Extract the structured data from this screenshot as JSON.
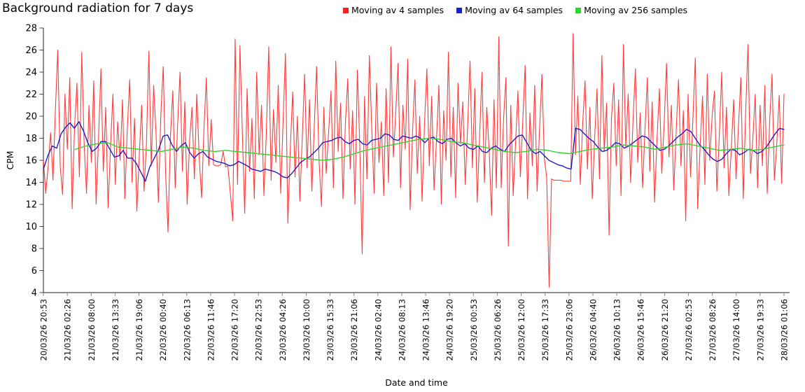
{
  "title": "Background radiation for 7 days",
  "legend": [
    {
      "label": "Moving av 4 samples",
      "color": "#ff1f1f"
    },
    {
      "label": "Moving av 64 samples",
      "color": "#1c1ccf"
    },
    {
      "label": "Moving av 256 samples",
      "color": "#2fd32f"
    }
  ],
  "chart_data": {
    "type": "line",
    "title": "Background radiation for 7 days",
    "xlabel": "Date and time",
    "ylabel": "CPM",
    "ylim": [
      4,
      28
    ],
    "grid": false,
    "legend_position": "top-center",
    "y_ticks": [
      4,
      6,
      8,
      10,
      12,
      14,
      16,
      18,
      20,
      22,
      24,
      26,
      28
    ],
    "x_ticks": [
      "20/03/26 20:53",
      "21/03/26 02:26",
      "21/03/26 08:00",
      "21/03/26 13:33",
      "21/03/26 19:06",
      "22/03/26 00:40",
      "22/03/26 06:13",
      "22/03/26 11:46",
      "22/03/26 17:20",
      "22/03/26 22:53",
      "23/03/26 04:26",
      "23/03/26 10:00",
      "23/03/26 15:33",
      "23/03/26 21:06",
      "24/03/26 02:40",
      "24/03/26 08:13",
      "24/03/26 13:46",
      "24/03/26 19:20",
      "25/03/26 00:53",
      "25/03/26 06:26",
      "25/03/26 12:00",
      "25/03/26 17:33",
      "25/03/26 23:06",
      "26/03/26 04:40",
      "26/03/26 10:13",
      "26/03/26 15:46",
      "26/03/26 21:20",
      "27/03/26 02:53",
      "27/03/26 08:26",
      "27/03/26 14:00",
      "27/03/26 19:33",
      "28/03/26 01:06"
    ],
    "x_unit": "percent of time axis from 20/03/26 20:53 to 28/03/26 01:06",
    "series": [
      {
        "name": "Moving av 4 samples",
        "color": "#ff1f1f",
        "width": 1.1,
        "opacity": 0.88,
        "x_start": 0,
        "x_end": 100,
        "values": [
          16.0,
          13.0,
          15.5,
          18.5,
          14.2,
          20.5,
          26.0,
          15.5,
          12.9,
          22.0,
          17.0,
          23.5,
          11.6,
          19.0,
          23.0,
          14.5,
          25.8,
          17.5,
          13.0,
          21.0,
          15.8,
          23.2,
          12.0,
          18.0,
          24.3,
          15.0,
          20.8,
          11.7,
          17.2,
          22.0,
          13.8,
          19.5,
          16.0,
          21.5,
          12.5,
          18.8,
          23.3,
          14.0,
          19.8,
          11.4,
          16.5,
          21.0,
          13.2,
          17.5,
          25.9,
          15.5,
          22.8,
          18.5,
          12.2,
          20.2,
          24.5,
          14.8,
          9.5,
          18.2,
          22.3,
          13.5,
          19.2,
          24.0,
          15.0,
          21.3,
          12.0,
          17.8,
          20.8,
          14.3,
          22.0,
          16.2,
          12.6,
          18.9,
          23.5,
          15.5,
          19.7,
          15.6,
          15.5,
          15.5,
          15.6,
          16.8,
          15.4,
          15.5,
          13.0,
          10.5,
          27.0,
          13.8,
          26.4,
          18.5,
          11.2,
          22.5,
          15.0,
          19.8,
          12.5,
          24.0,
          16.5,
          21.0,
          12.8,
          18.3,
          26.3,
          14.2,
          20.6,
          15.8,
          22.8,
          13.0,
          19.5,
          25.7,
          10.3,
          17.0,
          22.2,
          14.5,
          20.0,
          12.3,
          18.0,
          23.8,
          15.3,
          21.5,
          13.2,
          19.0,
          24.5,
          16.0,
          11.8,
          20.8,
          14.8,
          18.5,
          22.3,
          13.5,
          25.0,
          16.8,
          21.2,
          12.5,
          19.3,
          23.4,
          15.2,
          20.5,
          12.0,
          24.2,
          17.3,
          7.5,
          21.8,
          14.3,
          25.5,
          18.8,
          13.0,
          23.0,
          15.8,
          19.5,
          12.8,
          22.5,
          14.0,
          26.3,
          16.3,
          20.3,
          24.8,
          13.5,
          21.0,
          17.0,
          25.2,
          11.5,
          18.5,
          23.3,
          14.8,
          20.0,
          12.3,
          19.2,
          24.3,
          15.5,
          21.8,
          13.3,
          17.8,
          22.8,
          12.0,
          20.5,
          16.0,
          25.8,
          14.5,
          20.8,
          12.6,
          23.0,
          17.5,
          21.3,
          13.8,
          19.0,
          25.0,
          15.3,
          22.5,
          12.2,
          18.3,
          24.0,
          14.0,
          20.8,
          16.8,
          11.0,
          21.5,
          13.5,
          27.2,
          13.5,
          19.8,
          23.5,
          8.2,
          21.0,
          12.8,
          17.5,
          22.3,
          14.5,
          19.5,
          24.6,
          12.5,
          20.3,
          15.5,
          22.8,
          13.2,
          18.8,
          23.8,
          16.2,
          14.5,
          4.5,
          14.3,
          14.2,
          14.2,
          14.2,
          14.2,
          14.1,
          14.1,
          14.1,
          14.1,
          27.5,
          16.5,
          21.8,
          13.8,
          19.3,
          23.2,
          15.2,
          20.8,
          12.5,
          18.0,
          22.5,
          14.3,
          25.5,
          16.8,
          21.2,
          9.2,
          19.8,
          23.0,
          15.5,
          21.5,
          12.8,
          26.5,
          17.2,
          22.0,
          14.0,
          19.5,
          24.3,
          15.8,
          20.3,
          13.5,
          18.8,
          23.5,
          15.0,
          21.3,
          12.2,
          17.8,
          22.5,
          14.8,
          19.3,
          24.8,
          16.3,
          21.0,
          13.3,
          18.5,
          23.3,
          15.5,
          20.5,
          10.5,
          22.0,
          14.5,
          19.8,
          25.3,
          11.6,
          17.3,
          21.8,
          13.8,
          23.8,
          16.0,
          20.0,
          22.3,
          13.2,
          18.3,
          24.0,
          15.3,
          20.8,
          12.8,
          17.0,
          21.5,
          14.3,
          19.0,
          23.5,
          12.5,
          20.3,
          26.5,
          14.8,
          18.0,
          22.0,
          13.5,
          21.0,
          15.5,
          22.8,
          13.0,
          19.5,
          23.8,
          14.2,
          17.5,
          21.9,
          13.9,
          22.0
        ]
      },
      {
        "name": "Moving av 64 samples",
        "color": "#1c1ccf",
        "width": 1.4,
        "opacity": 1,
        "x_start": 0,
        "x_end": 100,
        "values": [
          15.2,
          16.4,
          17.3,
          17.1,
          18.4,
          19.0,
          19.4,
          18.9,
          19.5,
          18.7,
          17.6,
          16.8,
          17.1,
          17.7,
          17.7,
          17.0,
          16.3,
          16.4,
          16.9,
          16.2,
          16.2,
          15.7,
          14.9,
          14.1,
          15.4,
          16.2,
          17.0,
          18.2,
          18.3,
          17.4,
          16.8,
          17.3,
          17.6,
          16.7,
          16.2,
          16.6,
          16.8,
          16.3,
          16.1,
          15.9,
          15.8,
          15.7,
          15.5,
          15.6,
          15.9,
          15.7,
          15.5,
          15.2,
          15.1,
          15.0,
          15.2,
          15.1,
          15.0,
          14.8,
          14.5,
          14.4,
          14.8,
          15.3,
          15.8,
          16.1,
          16.3,
          16.7,
          17.1,
          17.6,
          17.7,
          17.8,
          18.0,
          18.1,
          17.7,
          17.5,
          17.8,
          17.9,
          17.5,
          17.4,
          17.8,
          17.9,
          18.0,
          18.4,
          18.3,
          17.9,
          17.8,
          18.2,
          18.1,
          18.0,
          18.2,
          18.0,
          17.6,
          18.0,
          18.1,
          17.7,
          17.5,
          17.9,
          18.0,
          17.6,
          17.3,
          17.5,
          17.1,
          17.0,
          17.3,
          16.8,
          16.7,
          17.1,
          17.3,
          17.0,
          16.8,
          17.4,
          17.8,
          18.2,
          18.3,
          17.6,
          16.9,
          16.6,
          16.8,
          16.4,
          16.0,
          15.8,
          15.6,
          15.5,
          15.3,
          15.2,
          18.9,
          18.8,
          18.4,
          18.0,
          17.7,
          17.2,
          16.8,
          16.9,
          17.2,
          17.6,
          17.5,
          17.1,
          17.3,
          17.6,
          17.9,
          18.2,
          18.1,
          17.7,
          17.3,
          16.9,
          17.0,
          17.3,
          17.7,
          18.1,
          18.4,
          18.8,
          18.6,
          18.0,
          17.4,
          17.0,
          16.5,
          16.1,
          15.9,
          16.1,
          16.6,
          17.0,
          16.9,
          16.5,
          16.7,
          17.0,
          16.9,
          16.6,
          16.8,
          17.2,
          17.8,
          18.4,
          18.9,
          18.8
        ]
      },
      {
        "name": "Moving av 256 samples",
        "color": "#2fd32f",
        "width": 1.4,
        "opacity": 1,
        "x_start": 4.3,
        "x_end": 100,
        "values": [
          17.0,
          17.3,
          17.5,
          17.6,
          17.2,
          17.1,
          17.0,
          16.9,
          16.8,
          17.0,
          17.2,
          17.1,
          16.9,
          16.8,
          16.9,
          16.8,
          16.7,
          16.6,
          16.5,
          16.4,
          16.3,
          16.2,
          16.1,
          16.0,
          16.1,
          16.3,
          16.6,
          16.9,
          17.1,
          17.3,
          17.5,
          17.7,
          17.9,
          18.0,
          17.9,
          17.7,
          17.6,
          17.4,
          17.2,
          17.0,
          16.8,
          16.7,
          16.8,
          17.0,
          16.9,
          16.7,
          16.6,
          16.8,
          17.0,
          17.1,
          17.2,
          17.4,
          17.3,
          17.2,
          17.0,
          17.2,
          17.4,
          17.5,
          17.3,
          17.1,
          16.9,
          17.0,
          17.1,
          16.9,
          17.0,
          17.2,
          17.4
        ]
      }
    ]
  }
}
